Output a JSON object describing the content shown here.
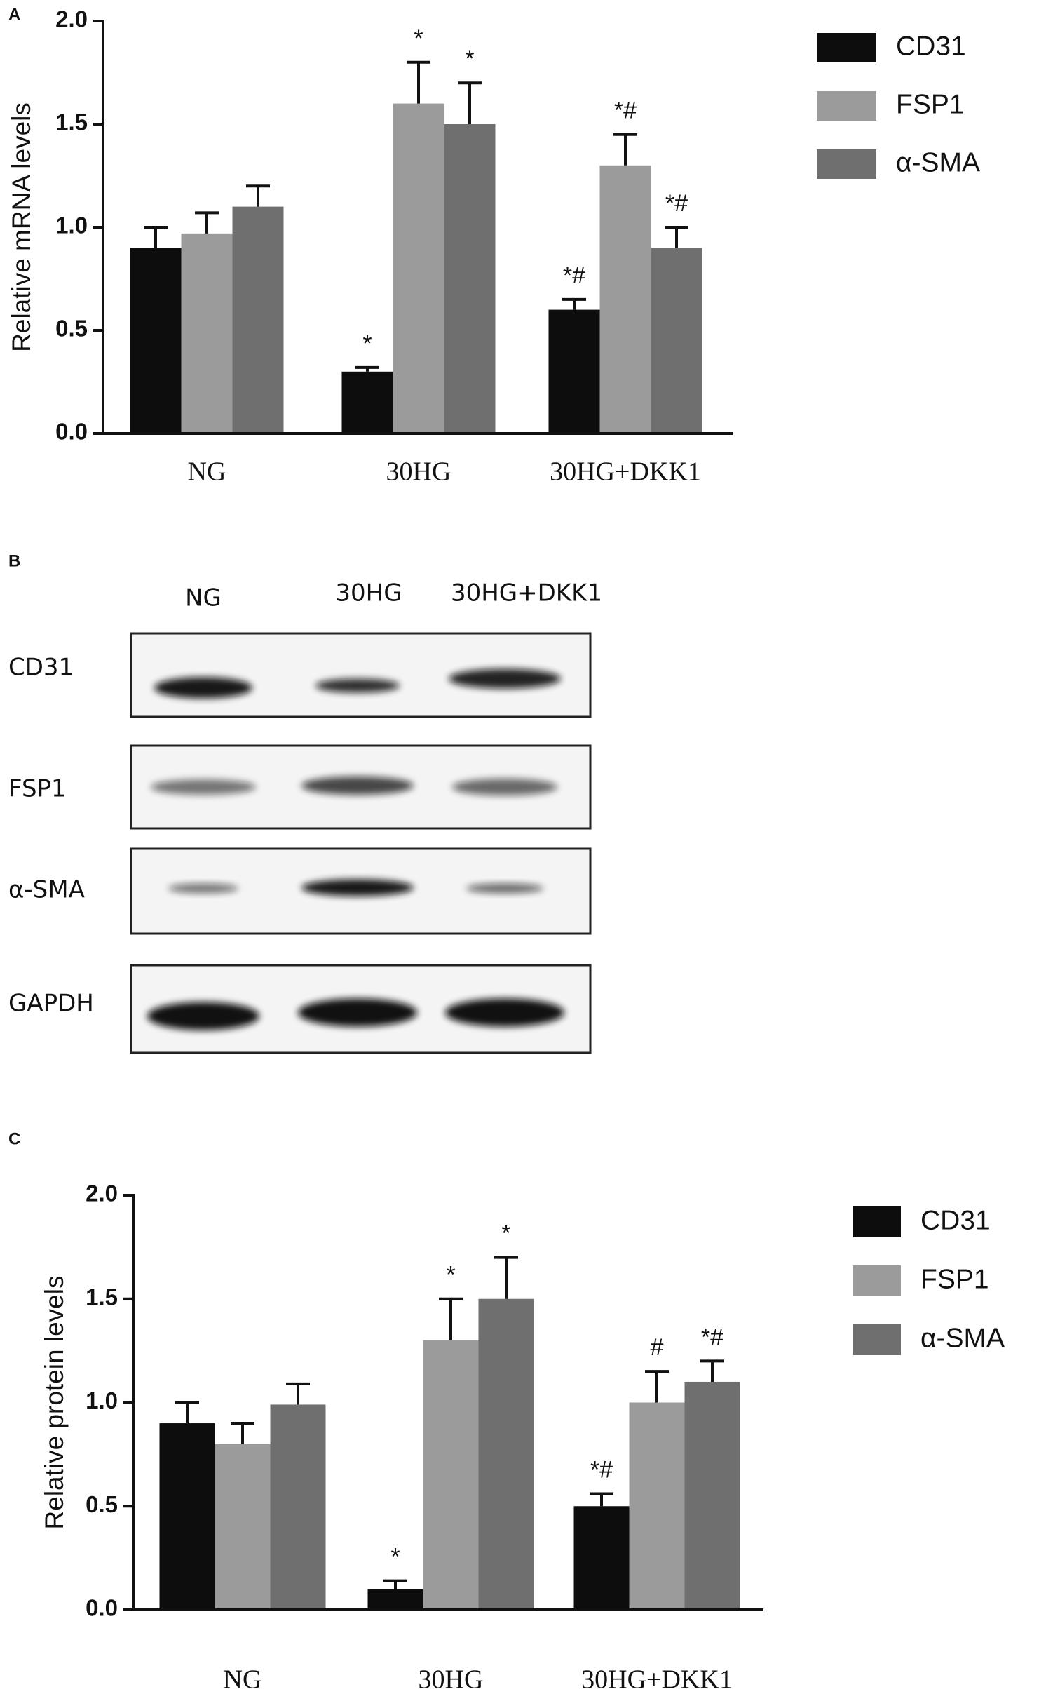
{
  "chart_data": [
    {
      "type": "bar",
      "panel_label": "A",
      "ylabel": "Relative mRNA levels",
      "categories": [
        "NG",
        "30HG",
        "30HG+DKK1"
      ],
      "series": [
        {
          "name": "CD31",
          "color": "#0d0d0d",
          "values": [
            0.9,
            0.3,
            0.6
          ],
          "errors": [
            0.1,
            0.02,
            0.05
          ],
          "annotations": [
            null,
            "*",
            "*#"
          ]
        },
        {
          "name": "FSP1",
          "color": "#9b9b9b",
          "values": [
            0.97,
            1.6,
            1.3
          ],
          "errors": [
            0.1,
            0.2,
            0.15
          ],
          "annotations": [
            null,
            "*",
            "*#"
          ]
        },
        {
          "name": "α-SMA",
          "color": "#6f6f6f",
          "values": [
            1.1,
            1.5,
            0.9
          ],
          "errors": [
            0.1,
            0.2,
            0.1
          ],
          "annotations": [
            null,
            "*",
            "*#"
          ]
        }
      ],
      "ylim": [
        0,
        2
      ],
      "yticks": [
        {
          "value": 0,
          "label": "0.0"
        },
        0.5,
        {
          "value": 1,
          "label": "1.0"
        },
        1.5,
        {
          "value": 2,
          "label": "2.0"
        }
      ],
      "legend": "right"
    },
    {
      "type": "bar",
      "panel_label": "C",
      "ylabel": "Relative protein levels",
      "categories": [
        "NG",
        "30HG",
        "30HG+DKK1"
      ],
      "series": [
        {
          "name": "CD31",
          "color": "#0d0d0d",
          "values": [
            0.9,
            0.1,
            0.5
          ],
          "errors": [
            0.1,
            0.04,
            0.06
          ],
          "annotations": [
            null,
            "*",
            "*#"
          ]
        },
        {
          "name": "FSP1",
          "color": "#9b9b9b",
          "values": [
            0.8,
            1.3,
            1.0
          ],
          "errors": [
            0.1,
            0.2,
            0.15
          ],
          "annotations": [
            null,
            "*",
            "#"
          ]
        },
        {
          "name": "α-SMA",
          "color": "#6f6f6f",
          "values": [
            0.99,
            1.5,
            1.1
          ],
          "errors": [
            0.1,
            0.2,
            0.1
          ],
          "annotations": [
            null,
            "*",
            "*#"
          ]
        }
      ],
      "ylim": [
        0,
        2
      ],
      "yticks": [
        {
          "value": 0,
          "label": "0.0"
        },
        0.5,
        {
          "value": 1,
          "label": "1.0"
        },
        1.5,
        {
          "value": 2,
          "label": "2.0"
        }
      ],
      "legend": "right"
    }
  ],
  "blot": {
    "panel_label": "B",
    "columns": [
      "NG",
      "30HG",
      "30HG+DKK1"
    ],
    "rows": [
      "CD31",
      "FSP1",
      "α-SMA",
      "GAPDH"
    ]
  }
}
